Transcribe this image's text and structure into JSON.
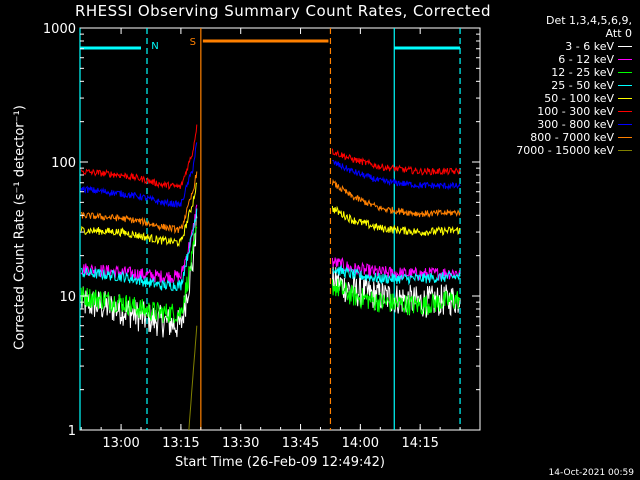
{
  "chart_data": {
    "type": "line",
    "title": "RHESSI Observing Summary Count Rates, Corrected",
    "xlabel": "Start Time (26-Feb-09 12:49:42)",
    "ylabel": "Corrected Count Rate (s⁻¹ detector⁻¹)",
    "yscale": "log",
    "ylim": [
      1,
      1000
    ],
    "xlim": [
      "12:49:42",
      "14:30:00"
    ],
    "x_ticks": [
      "13:00",
      "13:15",
      "13:30",
      "13:45",
      "14:00",
      "14:15"
    ],
    "y_ticks": [
      "1",
      "10",
      "100",
      "1000"
    ],
    "legend_header": [
      "Det 1,3,4,5,6,9,",
      "Att 0"
    ],
    "legend_position": "right",
    "timestamp": "14-Oct-2021 00:59",
    "flags": [
      {
        "label": "N",
        "color": "#00ffff",
        "start": "12:49:42",
        "end": "13:06:30"
      },
      {
        "label": "S",
        "color": "#ff8000",
        "start": "13:20:00",
        "end": "13:52:30"
      },
      {
        "label": "",
        "color": "#00ffff",
        "start": "14:08:30",
        "end": "14:25:00"
      }
    ],
    "vlines": [
      {
        "time": "12:49:42",
        "color": "#00ffff",
        "style": "solid"
      },
      {
        "time": "13:06:30",
        "color": "#00ffff",
        "style": "dashed"
      },
      {
        "time": "13:20:00",
        "color": "#ff8000",
        "style": "solid"
      },
      {
        "time": "13:52:30",
        "color": "#ff8000",
        "style": "dashed"
      },
      {
        "time": "14:08:30",
        "color": "#00ffff",
        "style": "solid"
      },
      {
        "time": "14:25:00",
        "color": "#00ffff",
        "style": "dashed"
      }
    ],
    "series": [
      {
        "name": "3 - 6 keV",
        "color": "#ffffff",
        "noise": 0.12,
        "segments": [
          [
            [
              "12:50",
              9
            ],
            [
              "13:00",
              8
            ],
            [
              "13:05",
              7
            ],
            [
              "13:10",
              6.5
            ],
            [
              "13:15",
              6
            ],
            [
              "13:18",
              18
            ],
            [
              "13:19",
              38
            ]
          ],
          [
            [
              "13:53",
              13
            ],
            [
              "13:58",
              11
            ],
            [
              "14:05",
              10
            ],
            [
              "14:15",
              9
            ],
            [
              "14:25",
              9.5
            ]
          ]
        ]
      },
      {
        "name": "6 - 12 keV",
        "color": "#ff00ff",
        "noise": 0.05,
        "segments": [
          [
            [
              "12:50",
              16
            ],
            [
              "13:00",
              15
            ],
            [
              "13:05",
              14.5
            ],
            [
              "13:10",
              14
            ],
            [
              "13:15",
              14
            ],
            [
              "13:18",
              30
            ],
            [
              "13:19",
              48
            ]
          ],
          [
            [
              "13:53",
              18
            ],
            [
              "13:58",
              16
            ],
            [
              "14:05",
              15
            ],
            [
              "14:15",
              14.5
            ],
            [
              "14:25",
              15
            ]
          ]
        ]
      },
      {
        "name": "12 - 25 keV",
        "color": "#00ff00",
        "noise": 0.08,
        "segments": [
          [
            [
              "12:50",
              10
            ],
            [
              "13:00",
              9
            ],
            [
              "13:05",
              8
            ],
            [
              "13:10",
              7.5
            ],
            [
              "13:15",
              7.5
            ],
            [
              "13:18",
              20
            ],
            [
              "13:19",
              32
            ]
          ],
          [
            [
              "13:53",
              12
            ],
            [
              "13:58",
              10
            ],
            [
              "14:05",
              9
            ],
            [
              "14:15",
              8.5
            ],
            [
              "14:25",
              9.5
            ]
          ]
        ]
      },
      {
        "name": "25 - 50 keV",
        "color": "#00ffff",
        "noise": 0.04,
        "segments": [
          [
            [
              "12:50",
              15
            ],
            [
              "13:00",
              14
            ],
            [
              "13:05",
              13
            ],
            [
              "13:10",
              12
            ],
            [
              "13:15",
              12
            ],
            [
              "13:18",
              30
            ],
            [
              "13:19",
              45
            ]
          ],
          [
            [
              "13:53",
              16
            ],
            [
              "13:58",
              14.5
            ],
            [
              "14:05",
              13.5
            ],
            [
              "14:15",
              13.5
            ],
            [
              "14:25",
              14
            ]
          ]
        ]
      },
      {
        "name": "50 - 100 keV",
        "color": "#ffff00",
        "noise": 0.03,
        "segments": [
          [
            [
              "12:50",
              31
            ],
            [
              "13:00",
              30
            ],
            [
              "13:05",
              28
            ],
            [
              "13:10",
              26
            ],
            [
              "13:15",
              25
            ],
            [
              "13:18",
              50
            ],
            [
              "13:19",
              70
            ]
          ],
          [
            [
              "13:53",
              45
            ],
            [
              "13:58",
              37
            ],
            [
              "14:05",
              32
            ],
            [
              "14:15",
              30
            ],
            [
              "14:25",
              31
            ]
          ]
        ]
      },
      {
        "name": "100 - 300 keV",
        "color": "#ff0000",
        "noise": 0.025,
        "segments": [
          [
            [
              "12:50",
              85
            ],
            [
              "13:00",
              80
            ],
            [
              "13:05",
              75
            ],
            [
              "13:10",
              68
            ],
            [
              "13:15",
              65
            ],
            [
              "13:18",
              120
            ],
            [
              "13:19",
              190
            ]
          ],
          [
            [
              "13:53",
              120
            ],
            [
              "13:58",
              105
            ],
            [
              "14:05",
              92
            ],
            [
              "14:15",
              85
            ],
            [
              "14:25",
              85
            ]
          ]
        ]
      },
      {
        "name": "300 - 800 keV",
        "color": "#0000ff",
        "noise": 0.025,
        "segments": [
          [
            [
              "12:50",
              63
            ],
            [
              "13:00",
              58
            ],
            [
              "13:05",
              55
            ],
            [
              "13:10",
              50
            ],
            [
              "13:15",
              48
            ],
            [
              "13:18",
              90
            ],
            [
              "13:19",
              140
            ]
          ],
          [
            [
              "13:53",
              100
            ],
            [
              "13:58",
              85
            ],
            [
              "14:05",
              72
            ],
            [
              "14:15",
              67
            ],
            [
              "14:25",
              66
            ]
          ]
        ]
      },
      {
        "name": "800 - 7000 keV",
        "color": "#ff8000",
        "noise": 0.025,
        "segments": [
          [
            [
              "12:50",
              40
            ],
            [
              "13:00",
              38
            ],
            [
              "13:05",
              36
            ],
            [
              "13:10",
              33
            ],
            [
              "13:15",
              31
            ],
            [
              "13:18",
              60
            ],
            [
              "13:19",
              85
            ]
          ],
          [
            [
              "13:53",
              70
            ],
            [
              "13:58",
              55
            ],
            [
              "14:05",
              45
            ],
            [
              "14:15",
              41
            ],
            [
              "14:25",
              42
            ]
          ]
        ]
      },
      {
        "name": "7000 - 15000 keV",
        "color": "#808000",
        "noise": 0.0,
        "segments": [
          [
            [
              "13:17",
              1
            ],
            [
              "13:18",
              2.5
            ],
            [
              "13:19",
              6
            ]
          ]
        ]
      }
    ]
  }
}
